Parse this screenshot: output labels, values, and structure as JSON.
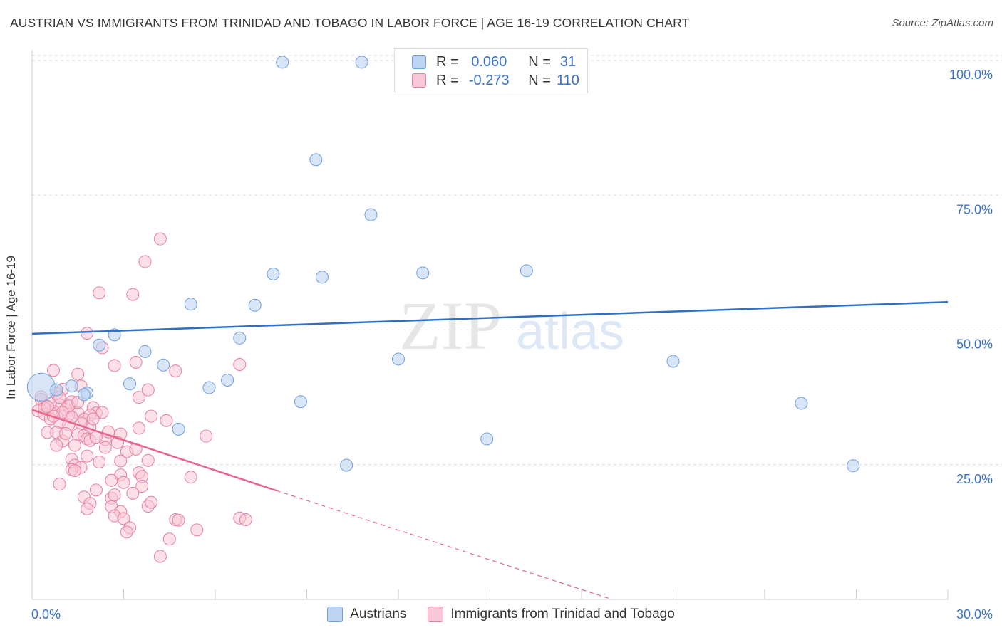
{
  "header": {
    "title": "AUSTRIAN VS IMMIGRANTS FROM TRINIDAD AND TOBAGO IN LABOR FORCE | AGE 16-19 CORRELATION CHART",
    "source": "Source: ZipAtlas.com"
  },
  "watermark": {
    "zip": "ZIP",
    "atlas": "atlas"
  },
  "stats": {
    "austrians": {
      "r_label": "R =",
      "r": "0.060",
      "n_label": "N =",
      "n": "31"
    },
    "immigrants": {
      "r_label": "R =",
      "r": "-0.273",
      "n_label": "N =",
      "n": "110"
    }
  },
  "colors": {
    "blue_fill": "#bcd3f2",
    "blue_stroke": "#6f9fdc",
    "blue_line": "#2f6fc6",
    "pink_fill": "#f8c7d6",
    "pink_stroke": "#e67fa0",
    "pink_line": "#e8648e",
    "axis_label": "#3a72c8"
  },
  "chart_data": {
    "type": "scatter",
    "title": "AUSTRIAN VS IMMIGRANTS FROM TRINIDAD AND TOBAGO IN LABOR FORCE | AGE 16-19 CORRELATION CHART",
    "xlabel": "",
    "ylabel": "In Labor Force | Age 16-19",
    "xlim": [
      0,
      30
    ],
    "ylim": [
      0,
      102
    ],
    "x_tick_labels": [
      "0.0%",
      "30.0%"
    ],
    "y_ticks": [
      25,
      50,
      75,
      100
    ],
    "y_tick_labels": [
      "25.0%",
      "50.0%",
      "75.0%",
      "100.0%"
    ],
    "grid": true,
    "legend": "bottom-center",
    "series": [
      {
        "name": "Austrians",
        "color": "#6f9fdc",
        "points": [
          [
            8.2,
            99.7
          ],
          [
            10.8,
            99.7
          ],
          [
            9.3,
            81.6
          ],
          [
            11.1,
            71.4
          ],
          [
            7.9,
            60.4
          ],
          [
            9.5,
            59.8
          ],
          [
            12.8,
            60.6
          ],
          [
            16.2,
            61.0
          ],
          [
            5.2,
            54.8
          ],
          [
            7.3,
            54.6
          ],
          [
            2.7,
            49.1
          ],
          [
            6.8,
            48.5
          ],
          [
            2.2,
            47.2
          ],
          [
            3.7,
            46.0
          ],
          [
            4.3,
            43.5
          ],
          [
            12.0,
            44.6
          ],
          [
            21.0,
            44.2
          ],
          [
            3.2,
            40.0
          ],
          [
            5.8,
            39.3
          ],
          [
            6.4,
            40.7
          ],
          [
            1.3,
            39.6
          ],
          [
            1.8,
            38.3
          ],
          [
            1.7,
            38.0
          ],
          [
            0.3,
            39.4
          ],
          [
            0.8,
            38.9
          ],
          [
            8.8,
            36.7
          ],
          [
            25.2,
            36.4
          ],
          [
            4.8,
            31.6
          ],
          [
            14.9,
            29.8
          ],
          [
            10.3,
            24.9
          ],
          [
            26.9,
            24.8
          ]
        ],
        "sizes": [
          1,
          1,
          1,
          1,
          1,
          1,
          1,
          1,
          1,
          1,
          1,
          1,
          1,
          1,
          1,
          1,
          1,
          1,
          1,
          1,
          1,
          1,
          1,
          2.3,
          1,
          1,
          1,
          1,
          1,
          1,
          1
        ],
        "trend": {
          "x": [
            0,
            30
          ],
          "y": [
            49.3,
            55.2
          ],
          "style": "solid"
        }
      },
      {
        "name": "Immigrants from Trinidad and Tobago",
        "color": "#e67fa0",
        "points": [
          [
            4.2,
            66.9
          ],
          [
            3.7,
            62.7
          ],
          [
            2.2,
            56.9
          ],
          [
            3.3,
            56.6
          ],
          [
            1.8,
            49.4
          ],
          [
            2.3,
            46.7
          ],
          [
            3.4,
            44.0
          ],
          [
            2.7,
            43.4
          ],
          [
            6.8,
            43.6
          ],
          [
            4.7,
            42.4
          ],
          [
            1.5,
            41.8
          ],
          [
            0.7,
            42.5
          ],
          [
            1.6,
            39.6
          ],
          [
            1.0,
            39.0
          ],
          [
            3.8,
            38.9
          ],
          [
            0.3,
            37.6
          ],
          [
            1.3,
            36.7
          ],
          [
            3.5,
            37.5
          ],
          [
            0.4,
            36.1
          ],
          [
            0.9,
            36.1
          ],
          [
            1.1,
            35.3
          ],
          [
            2.0,
            35.6
          ],
          [
            0.5,
            35.2
          ],
          [
            0.7,
            34.9
          ],
          [
            1.5,
            34.6
          ],
          [
            0.2,
            35.0
          ],
          [
            0.4,
            34.4
          ],
          [
            1.2,
            34.3
          ],
          [
            2.1,
            34.6
          ],
          [
            1.9,
            34.2
          ],
          [
            3.9,
            34.0
          ],
          [
            0.6,
            33.5
          ],
          [
            1.7,
            33.4
          ],
          [
            4.4,
            33.2
          ],
          [
            0.9,
            32.9
          ],
          [
            1.2,
            32.4
          ],
          [
            1.9,
            32.0
          ],
          [
            3.5,
            31.8
          ],
          [
            0.5,
            31.0
          ],
          [
            0.8,
            31.0
          ],
          [
            1.5,
            30.6
          ],
          [
            1.7,
            30.4
          ],
          [
            2.9,
            30.7
          ],
          [
            5.7,
            30.3
          ],
          [
            1.0,
            29.4
          ],
          [
            1.8,
            29.8
          ],
          [
            2.4,
            29.7
          ],
          [
            0.8,
            28.6
          ],
          [
            1.4,
            28.6
          ],
          [
            3.1,
            27.4
          ],
          [
            1.8,
            26.6
          ],
          [
            1.3,
            26.0
          ],
          [
            3.8,
            25.8
          ],
          [
            2.9,
            25.7
          ],
          [
            1.4,
            24.9
          ],
          [
            1.6,
            24.5
          ],
          [
            1.3,
            24.1
          ],
          [
            1.4,
            23.9
          ],
          [
            3.5,
            23.5
          ],
          [
            2.9,
            23.1
          ],
          [
            3.6,
            22.8
          ],
          [
            5.2,
            22.7
          ],
          [
            2.6,
            22.1
          ],
          [
            0.9,
            21.4
          ],
          [
            3.6,
            21.0
          ],
          [
            2.1,
            20.3
          ],
          [
            3.3,
            19.7
          ],
          [
            1.7,
            19.0
          ],
          [
            2.6,
            18.8
          ],
          [
            1.9,
            17.8
          ],
          [
            2.6,
            17.2
          ],
          [
            3.8,
            17.3
          ],
          [
            1.8,
            16.8
          ],
          [
            2.9,
            16.3
          ],
          [
            2.7,
            15.5
          ],
          [
            3.0,
            15.0
          ],
          [
            6.8,
            15.1
          ],
          [
            7.0,
            14.8
          ],
          [
            4.7,
            14.8
          ],
          [
            4.8,
            14.7
          ],
          [
            3.2,
            13.3
          ],
          [
            5.4,
            12.9
          ],
          [
            3.1,
            12.5
          ],
          [
            4.5,
            11.2
          ],
          [
            4.2,
            8.0
          ],
          [
            1.2,
            35.9
          ],
          [
            0.3,
            37.1
          ],
          [
            0.6,
            36.4
          ],
          [
            2.3,
            34.7
          ],
          [
            1.0,
            34.7
          ],
          [
            0.4,
            35.5
          ],
          [
            0.7,
            34.0
          ],
          [
            2.5,
            31.1
          ],
          [
            1.9,
            29.5
          ],
          [
            2.8,
            29.1
          ],
          [
            2.0,
            33.5
          ],
          [
            1.6,
            32.7
          ],
          [
            0.5,
            35.8
          ],
          [
            1.1,
            30.8
          ],
          [
            2.4,
            28.2
          ],
          [
            3.4,
            27.9
          ],
          [
            2.2,
            25.5
          ],
          [
            1.5,
            36.6
          ],
          [
            0.8,
            38.2
          ],
          [
            2.1,
            30.1
          ],
          [
            1.3,
            33.8
          ],
          [
            3.0,
            21.7
          ],
          [
            2.7,
            19.4
          ],
          [
            3.9,
            18.0
          ],
          [
            0.9,
            37.5
          ]
        ],
        "trend": {
          "x": [
            0,
            8
          ],
          "y": [
            35.2,
            20.2
          ],
          "style": "solid",
          "dashed_to": [
            19,
            0
          ]
        }
      }
    ]
  },
  "legend_bottom": {
    "items": [
      {
        "label": "Austrians"
      },
      {
        "label": "Immigrants from Trinidad and Tobago"
      }
    ]
  }
}
